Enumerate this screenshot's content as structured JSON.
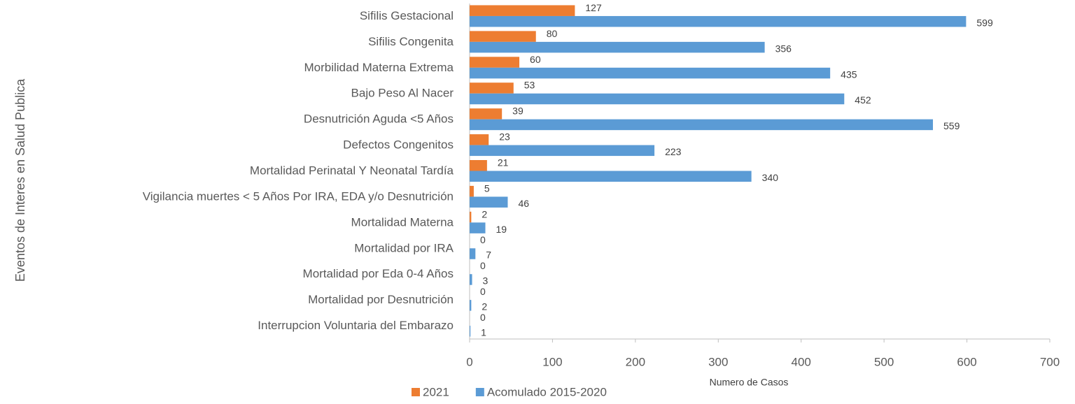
{
  "chart_data": {
    "type": "bar",
    "orientation": "horizontal",
    "xlabel": "Numero de Casos",
    "ylabel": "Eventos de Interes en Salud Publica",
    "categories": [
      "Sifilis Gestacional",
      "Sifilis Congenita",
      "Morbilidad Materna Extrema",
      "Bajo Peso Al Nacer",
      "Desnutrición Aguda <5 Años",
      "Defectos Congenitos",
      "Mortalidad Perinatal Y Neonatal Tardía",
      "Vigilancia muertes < 5 Años Por IRA, EDA y/o Desnutrición",
      "Mortalidad Materna",
      "Mortalidad por IRA",
      "Mortalidad por Eda 0-4 Años",
      "Mortalidad por Desnutrición",
      "Interrupcion Voluntaria del Embarazo"
    ],
    "series": [
      {
        "name": "2021",
        "color": "#ed7d31",
        "values": [
          127,
          80,
          60,
          53,
          39,
          23,
          21,
          5,
          2,
          0,
          0,
          0,
          0
        ]
      },
      {
        "name": "Acomulado 2015-2020",
        "color": "#5b9bd5",
        "values": [
          599,
          356,
          435,
          452,
          559,
          223,
          340,
          46,
          19,
          7,
          3,
          2,
          1
        ]
      }
    ],
    "xlim": [
      0,
      700
    ],
    "xticks": [
      0,
      100,
      200,
      300,
      400,
      500,
      600,
      700
    ],
    "grid": false,
    "legend": "bottom"
  }
}
